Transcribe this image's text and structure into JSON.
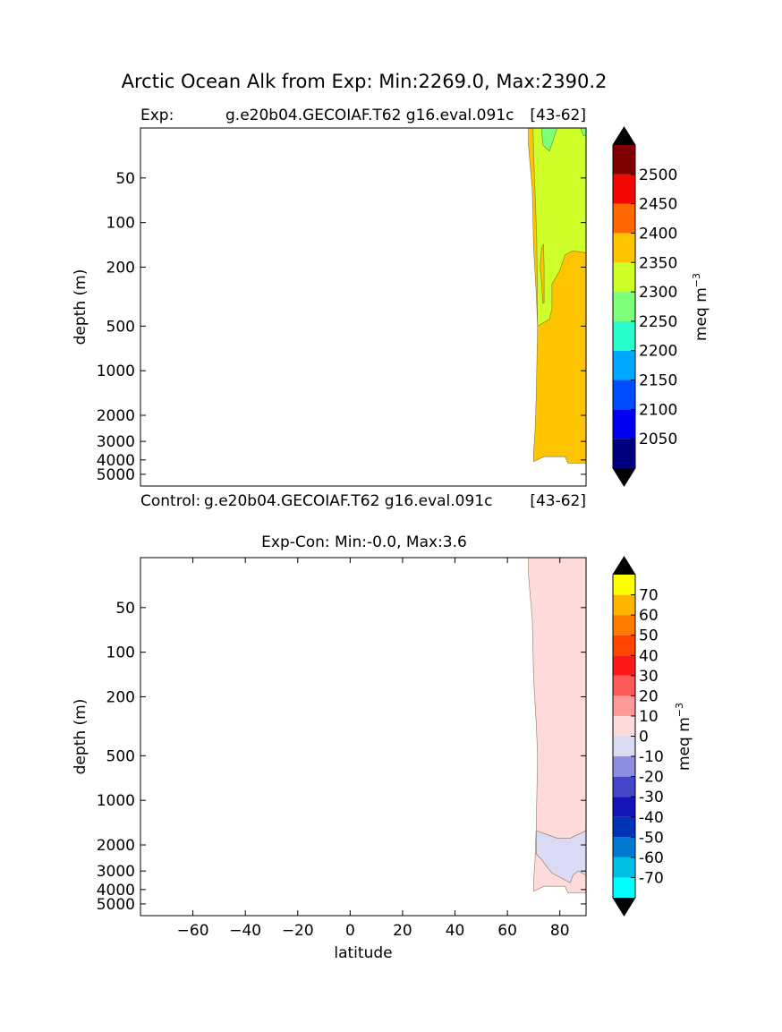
{
  "figure": {
    "suptitle": "Arctic Ocean Alk from Exp: Min:2269.0, Max:2390.2"
  },
  "chart_data": [
    {
      "type": "contourf",
      "panel": "top",
      "title_left": "Exp:",
      "title_center": "g.e20b04.GECOIAF.T62 g16.eval.091c",
      "title_right": "[43-62]",
      "ylabel": "depth (m)",
      "yscale": "log",
      "ylim": [
        6000,
        23
      ],
      "xlim": [
        -80,
        90
      ],
      "y_ticks": [
        50,
        100,
        200,
        500,
        1000,
        2000,
        3000,
        4000,
        5000
      ],
      "y_tick_labels": [
        "50",
        "100",
        "200",
        "500",
        "1000",
        "2000",
        "3000",
        "4000",
        "5000"
      ],
      "colorbar": {
        "label": "meq m",
        "label_sup": "−3",
        "levels": [
          2000,
          2050,
          2100,
          2150,
          2200,
          2250,
          2300,
          2350,
          2400,
          2450,
          2500,
          2550
        ],
        "colors": [
          "#00007f",
          "#0000f1",
          "#004dff",
          "#00a9ff",
          "#29ffcd",
          "#7dff7a",
          "#ceff29",
          "#ffc400",
          "#ff6800",
          "#f10800",
          "#7f0000"
        ],
        "tick_values": [
          2050,
          2100,
          2150,
          2200,
          2250,
          2300,
          2350,
          2400,
          2450,
          2500
        ],
        "tick_labels": [
          "2050",
          "2100",
          "2150",
          "2200",
          "2250",
          "2300",
          "2350",
          "2400",
          "2450",
          "2500"
        ],
        "under_color": "#000000",
        "over_color": "#000000"
      },
      "regions": [
        {
          "color": "#ffc400",
          "points": [
            [
              70,
              4100
            ],
            [
              70,
              3500
            ],
            [
              70.5,
              2600
            ],
            [
              71,
              1500
            ],
            [
              71.5,
              500
            ],
            [
              71,
              300
            ],
            [
              70,
              150
            ],
            [
              69.5,
              60
            ],
            [
              68,
              30
            ],
            [
              68,
              23
            ],
            [
              90,
              23
            ],
            [
              90,
              4200
            ],
            [
              83,
              4200
            ],
            [
              82,
              3800
            ],
            [
              77,
              3800
            ],
            [
              74,
              3800
            ]
          ]
        },
        {
          "color": "#ceff29",
          "points": [
            [
              71.5,
              500
            ],
            [
              71.4,
              300
            ],
            [
              71.2,
              130
            ],
            [
              70.5,
              60
            ],
            [
              70,
              35
            ],
            [
              69.8,
              23
            ],
            [
              90,
              23
            ],
            [
              90,
              160
            ],
            [
              85,
              155
            ],
            [
              82,
              165
            ],
            [
              80,
              210
            ],
            [
              77,
              260
            ],
            [
              77,
              380
            ],
            [
              76,
              450
            ]
          ]
        },
        {
          "color": "#ffc400",
          "points": [
            [
              73,
              150
            ],
            [
              72.5,
              200
            ],
            [
              73,
              250
            ],
            [
              73.5,
              350
            ],
            [
              74,
              350
            ],
            [
              74,
              200
            ],
            [
              73.8,
              140
            ]
          ]
        },
        {
          "color": "#7dff7a",
          "points": [
            [
              73,
              23
            ],
            [
              73.5,
              30
            ],
            [
              76,
              33
            ],
            [
              78,
              26
            ],
            [
              79,
              23
            ]
          ]
        },
        {
          "color": "#7dff7a",
          "points": [
            [
              88,
              23
            ],
            [
              89,
              26
            ],
            [
              90,
              26
            ],
            [
              90,
              23
            ]
          ]
        }
      ]
    },
    {
      "type": "contourf",
      "panel": "bottom",
      "title_left": "Control:",
      "title_center": "g.e20b04.GECOIAF.T62 g16.eval.091c",
      "title_right": "[43-62]",
      "title_main": "Exp-Con: Min:-0.0, Max:3.6",
      "ylabel": "depth (m)",
      "xlabel": "latitude",
      "yscale": "log",
      "ylim": [
        6000,
        23
      ],
      "xlim": [
        -80,
        90
      ],
      "x_ticks": [
        -60,
        -40,
        -20,
        0,
        20,
        40,
        60,
        80
      ],
      "x_tick_labels": [
        "−60",
        "−40",
        "−20",
        "0",
        "20",
        "40",
        "60",
        "80"
      ],
      "y_ticks": [
        50,
        100,
        200,
        500,
        1000,
        2000,
        3000,
        4000,
        5000
      ],
      "y_tick_labels": [
        "50",
        "100",
        "200",
        "500",
        "1000",
        "2000",
        "3000",
        "4000",
        "5000"
      ],
      "colorbar": {
        "label": "meq m",
        "label_sup": "−3",
        "levels": [
          -80,
          -70,
          -60,
          -50,
          -40,
          -30,
          -20,
          -10,
          0,
          10,
          20,
          30,
          40,
          50,
          60,
          70,
          80
        ],
        "colors": [
          "#00ffff",
          "#00bfe7",
          "#0078d0",
          "#0033b8",
          "#1414b8",
          "#4646c8",
          "#8e8ee0",
          "#dadaf4",
          "#ffdada",
          "#ff9a9a",
          "#ff5a5a",
          "#ff1818",
          "#ff4400",
          "#ff7a00",
          "#ffb400",
          "#ffff00"
        ],
        "tick_values": [
          -70,
          -60,
          -50,
          -40,
          -30,
          -20,
          -10,
          0,
          10,
          20,
          30,
          40,
          50,
          60,
          70
        ],
        "tick_labels": [
          "-70",
          "-60",
          "-50",
          "-40",
          "-30",
          "-20",
          "-10",
          "0",
          "10",
          "20",
          "30",
          "40",
          "50",
          "60",
          "70"
        ],
        "under_color": "#000000",
        "over_color": "#000000"
      },
      "regions": [
        {
          "color": "#ffdada",
          "points": [
            [
              70,
              4100
            ],
            [
              70,
              3500
            ],
            [
              70.5,
              2600
            ],
            [
              71,
              1500
            ],
            [
              71.5,
              500
            ],
            [
              71,
              300
            ],
            [
              70,
              150
            ],
            [
              69.5,
              60
            ],
            [
              68,
              30
            ],
            [
              68,
              23
            ],
            [
              90,
              23
            ],
            [
              90,
              4200
            ],
            [
              83,
              4200
            ],
            [
              82,
              3800
            ],
            [
              77,
              3800
            ],
            [
              74,
              3800
            ]
          ]
        },
        {
          "color": "#dadaf4",
          "points": [
            [
              71,
              1600
            ],
            [
              75,
              1700
            ],
            [
              79,
              1800
            ],
            [
              84,
              1800
            ],
            [
              90,
              1600
            ],
            [
              90,
              3200
            ],
            [
              87,
              3000
            ],
            [
              85,
              3200
            ],
            [
              84,
              3600
            ],
            [
              80,
              3300
            ],
            [
              77,
              3100
            ],
            [
              75,
              2800
            ],
            [
              73,
              2500
            ],
            [
              71,
              2300
            ]
          ]
        }
      ]
    }
  ]
}
